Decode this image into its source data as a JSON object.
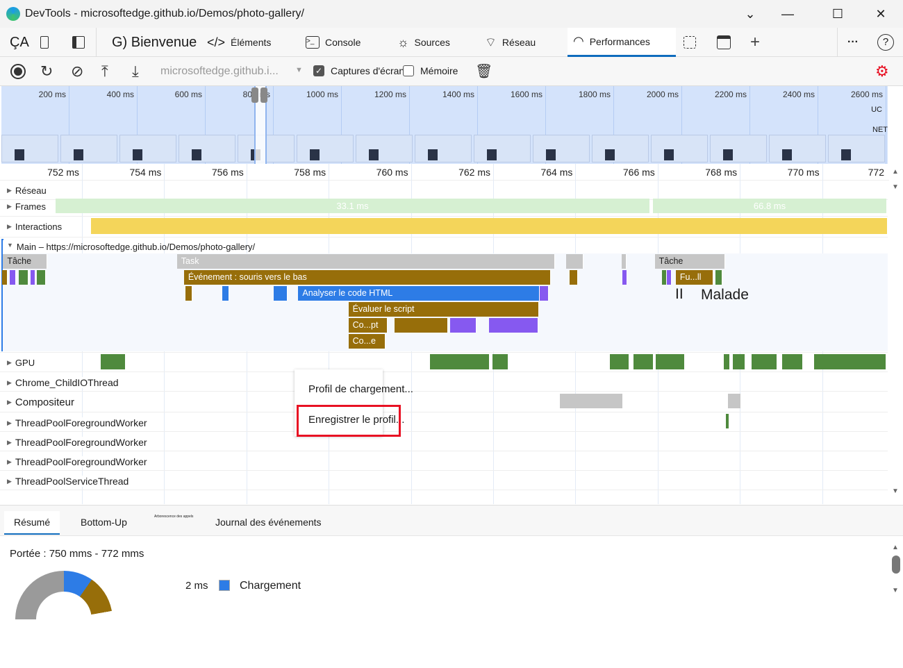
{
  "window": {
    "title": "DevTools - microsoftedge.github.io/Demos/photo-gallery/",
    "minimize": "⌄",
    "maximize": "☐",
    "close": "✕",
    "restore_down": "—"
  },
  "tabs": {
    "ca": "ÇA",
    "welcome": "G) Bienvenue",
    "items": [
      {
        "label": "Éléments",
        "icon": "code-icon"
      },
      {
        "label": "Console",
        "icon": "console-icon"
      },
      {
        "label": "Sources",
        "icon": "bug-icon"
      },
      {
        "label": "Réseau",
        "icon": "wifi-icon"
      },
      {
        "label": "Performances",
        "icon": "gauge-icon",
        "active": true
      }
    ],
    "more": "···",
    "help": "?",
    "add": "+"
  },
  "toolbar": {
    "url": "microsoftedge.github.i...",
    "screenshots_label": "Captures d'écran",
    "screenshots_checked": true,
    "memory_label": "Mémoire",
    "memory_checked": false
  },
  "overview": {
    "ticks": [
      "200 ms",
      "400 ms",
      "600 ms",
      "800 ms",
      "1000 ms",
      "1200 ms",
      "1400 ms",
      "1600 ms",
      "1800 ms",
      "2000 ms",
      "2200 ms",
      "2400 ms",
      "2600 ms"
    ],
    "cpu_label": "UC",
    "net_label": "NET",
    "selection_ms": [
      750,
      772
    ]
  },
  "ruler": {
    "ticks": [
      "752 ms",
      "754 ms",
      "756 ms",
      "758 ms",
      "760 ms",
      "762 ms",
      "764 ms",
      "766 ms",
      "768 ms",
      "770 ms",
      "772"
    ]
  },
  "tracks": {
    "network": "Réseau",
    "frames": "Frames",
    "frame_values": [
      "33.1 ms",
      "66.8 ms"
    ],
    "interactions": "Interactions",
    "main": "Main – https://microsoftedge.github.io/Demos/photo-gallery/",
    "gpu": "GPU",
    "child_io": "Chrome_ChildIOThread",
    "compositor": "Compositeur",
    "pool1": "ThreadPoolForegroundWorker",
    "pool2": "ThreadPoolForegroundWorker",
    "pool3": "ThreadPoolForegroundWorker",
    "service": "ThreadPoolServiceThread"
  },
  "colors": {
    "task": "#c6c6c6",
    "script": "#976e0a",
    "parse": "#2d7ce6",
    "render": "#8659f0",
    "paint": "#4f8a3d",
    "frame": "#d6f0d2",
    "interaction": "#f4d55a",
    "highlight": "#e81123"
  },
  "flame": [
    {
      "label": "Tâche",
      "start": 750.08,
      "end": 751.15,
      "depth": 0,
      "kind": "task",
      "dark": true
    },
    {
      "label": "Task",
      "start": 754.31,
      "end": 763.51,
      "depth": 0,
      "kind": "task"
    },
    {
      "label": "",
      "start": 763.77,
      "end": 764.19,
      "depth": 0,
      "kind": "task"
    },
    {
      "label": "",
      "start": 765.12,
      "end": 765.25,
      "depth": 0,
      "kind": "task"
    },
    {
      "label": "Tâche",
      "start": 765.93,
      "end": 767.65,
      "depth": 0,
      "kind": "task",
      "dark": true
    },
    {
      "label": "",
      "start": 750.05,
      "end": 750.2,
      "depth": 1,
      "kind": "script"
    },
    {
      "label": "",
      "start": 750.25,
      "end": 750.4,
      "depth": 1,
      "kind": "render"
    },
    {
      "label": "",
      "start": 750.47,
      "end": 750.7,
      "depth": 1,
      "kind": "paint"
    },
    {
      "label": "",
      "start": 750.75,
      "end": 750.87,
      "depth": 1,
      "kind": "render"
    },
    {
      "label": "",
      "start": 750.9,
      "end": 751.13,
      "depth": 1,
      "kind": "paint"
    },
    {
      "label": "Événement : souris vers le bas",
      "start": 754.48,
      "end": 763.4,
      "depth": 1,
      "kind": "script"
    },
    {
      "label": "",
      "start": 763.86,
      "end": 764.06,
      "depth": 1,
      "kind": "script"
    },
    {
      "label": "",
      "start": 765.15,
      "end": 765.2,
      "depth": 1,
      "kind": "render"
    },
    {
      "label": "",
      "start": 766.1,
      "end": 766.2,
      "depth": 1,
      "kind": "paint"
    },
    {
      "label": "",
      "start": 766.22,
      "end": 766.33,
      "depth": 1,
      "kind": "render"
    },
    {
      "label": "Fu...ll",
      "start": 766.44,
      "end": 767.36,
      "depth": 1,
      "kind": "script"
    },
    {
      "label": "",
      "start": 767.4,
      "end": 767.58,
      "depth": 1,
      "kind": "paint"
    },
    {
      "label": "",
      "start": 754.51,
      "end": 754.68,
      "depth": 2,
      "kind": "script"
    },
    {
      "label": "",
      "start": 755.42,
      "end": 755.58,
      "depth": 2,
      "kind": "parse"
    },
    {
      "label": "",
      "start": 756.67,
      "end": 757.0,
      "depth": 2,
      "kind": "parse"
    },
    {
      "label": "Analyser le code HTML",
      "start": 757.26,
      "end": 763.13,
      "depth": 2,
      "kind": "parse"
    },
    {
      "label": "",
      "start": 763.14,
      "end": 763.35,
      "depth": 2,
      "kind": "render"
    },
    {
      "label": "Évaluer le script",
      "start": 758.48,
      "end": 763.11,
      "depth": 3,
      "kind": "script"
    },
    {
      "label": "Co...pt",
      "start": 758.48,
      "end": 759.43,
      "depth": 4,
      "kind": "script"
    },
    {
      "label": "",
      "start": 759.6,
      "end": 760.9,
      "depth": 4,
      "kind": "script"
    },
    {
      "label": "",
      "start": 760.95,
      "end": 761.6,
      "depth": 4,
      "kind": "render"
    },
    {
      "label": "",
      "start": 761.9,
      "end": 763.1,
      "depth": 4,
      "kind": "render"
    },
    {
      "label": "Co...e",
      "start": 758.48,
      "end": 759.38,
      "depth": 5,
      "kind": "script"
    }
  ],
  "flame_stray_text": [
    "II",
    "Malade"
  ],
  "gpu_blocks": [
    [
      752.45,
      753.04
    ],
    [
      760.47,
      761.9
    ],
    [
      761.99,
      762.36
    ],
    [
      764.83,
      765.29
    ],
    [
      765.41,
      765.88
    ],
    [
      765.96,
      766.64
    ],
    [
      767.6,
      767.74
    ],
    [
      767.83,
      768.12
    ],
    [
      768.29,
      768.9
    ],
    [
      769.02,
      769.52
    ],
    [
      769.81,
      771.55
    ]
  ],
  "context_menu": {
    "items": [
      "Profil de chargement...",
      "Enregistrer le profil..."
    ],
    "highlighted": 1
  },
  "bottom": {
    "tabs": [
      "Résumé",
      "Bottom-Up",
      "Arborescence des appels",
      "Journal des événements"
    ],
    "active_tab": 0,
    "range": "Portée : 750 mms - 772 mms",
    "legend": [
      {
        "value": "2 ms",
        "label": "Chargement",
        "color": "#2d7ce6"
      }
    ]
  }
}
